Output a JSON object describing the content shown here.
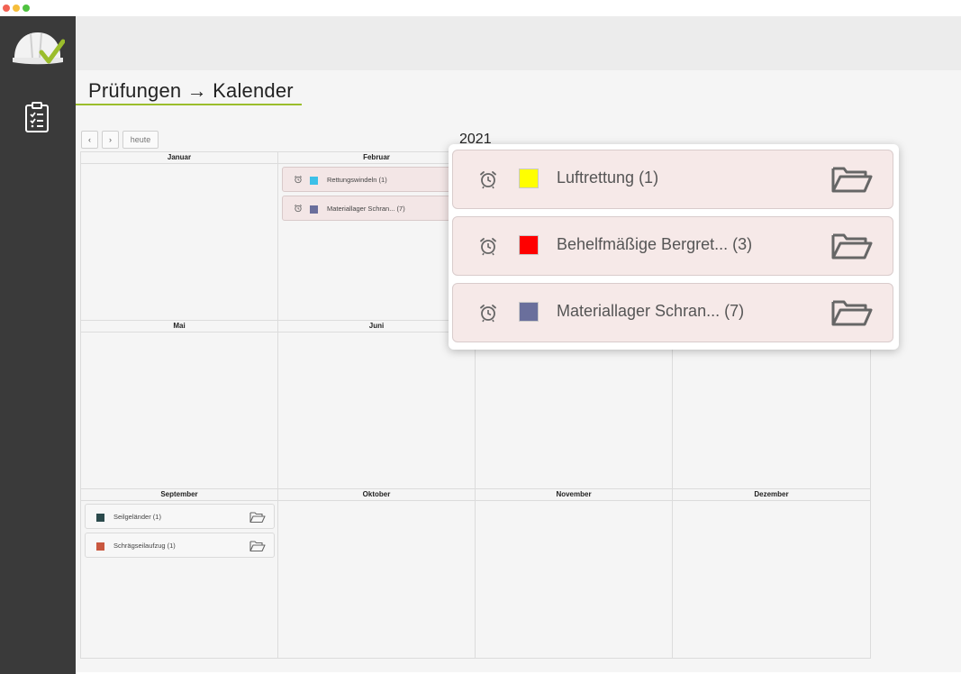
{
  "window": {
    "controls": [
      "close",
      "minimize",
      "maximize"
    ]
  },
  "sidebar": {
    "logo_icon": "hardhat-check-icon",
    "items": [
      {
        "icon": "clipboard-checklist-icon"
      }
    ]
  },
  "page": {
    "title": "Prüfungen → Kalender"
  },
  "toolbar": {
    "prev_label": "‹",
    "next_label": "›",
    "today_label": "heute"
  },
  "calendar": {
    "year": "2021",
    "months": [
      {
        "name": "Januar",
        "entries": []
      },
      {
        "name": "Februar",
        "entries": [
          {
            "label": "Rettungswindeln (1)",
            "color": "#3cc0e8",
            "has_alarm": true
          },
          {
            "label": "Materiallager Schran... (7)",
            "color": "#6a6f9c",
            "has_alarm": true
          }
        ]
      },
      {
        "name": "Mai",
        "entries": []
      },
      {
        "name": "Juni",
        "entries": []
      },
      {
        "name": "September",
        "entries": [
          {
            "label": "Seilgeländer (1)",
            "color": "#2b4a4c",
            "has_alarm": false
          },
          {
            "label": "Schrägseilaufzug (1)",
            "color": "#c9573f",
            "has_alarm": false
          }
        ]
      },
      {
        "name": "Oktober",
        "entries": []
      },
      {
        "name": "November",
        "entries": []
      },
      {
        "name": "Dezember",
        "entries": []
      }
    ]
  },
  "popup": {
    "entries": [
      {
        "label": "Luftrettung (1)",
        "color": "#ffff00"
      },
      {
        "label": "Behelfmäßige Bergret... (3)",
        "color": "#ff0000"
      },
      {
        "label": "Materiallager Schran... (7)",
        "color": "#6a6f9c"
      }
    ]
  },
  "colors": {
    "accent": "#9bbd2c",
    "sidebar": "#3a3a3a",
    "entry_bg": "#f6e9e8"
  }
}
